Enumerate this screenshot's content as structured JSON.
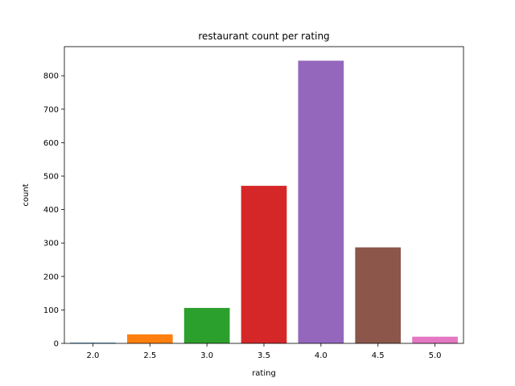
{
  "chart_data": {
    "type": "bar",
    "title": "restaurant count per rating",
    "xlabel": "rating",
    "ylabel": "count",
    "categories": [
      "2.0",
      "2.5",
      "3.0",
      "3.5",
      "4.0",
      "4.5",
      "5.0"
    ],
    "values": [
      2,
      27,
      106,
      471,
      845,
      287,
      20
    ],
    "colors": [
      "#1f77b4",
      "#ff7f0e",
      "#2ca02c",
      "#d62728",
      "#9467bd",
      "#8c564b",
      "#e377c2"
    ],
    "ylim": [
      0,
      887
    ],
    "yticks": [
      0,
      100,
      200,
      300,
      400,
      500,
      600,
      700,
      800
    ],
    "grid": false,
    "legend": "none"
  }
}
